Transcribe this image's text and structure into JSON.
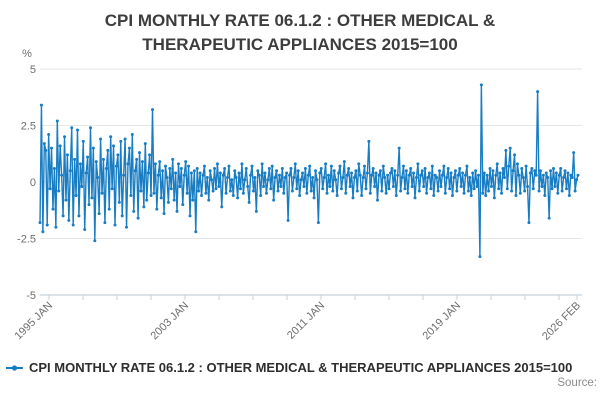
{
  "title": {
    "line1": "CPI MONTHLY RATE 06.1.2 : OTHER MEDICAL &",
    "line2": "THERAPEUTIC APPLIANCES 2015=100"
  },
  "y_axis": {
    "unit": "%",
    "tick_labels": [
      "5",
      "2.5",
      "0",
      "-2.5",
      "-5"
    ]
  },
  "x_axis": {
    "tick_labels": [
      "1995 JAN",
      "2003 JAN",
      "2011 JAN",
      "2019 JAN",
      "2026 FEB"
    ]
  },
  "legend": {
    "label": "CPI MONTHLY RATE 06.1.2 : OTHER MEDICAL & THERAPEUTIC APPLIANCES 2015=100"
  },
  "source": {
    "label": "Source:"
  },
  "colors": {
    "line": "#197dc3",
    "grid": "#e6e6e6",
    "axis": "#c8d2dc",
    "tick_text": "#6e6e6e",
    "title_text": "#3d3d3d",
    "source_text": "#8d8d8d"
  },
  "chart_data": {
    "type": "line",
    "title": "CPI MONTHLY RATE 06.1.2 : OTHER MEDICAL & THERAPEUTIC APPLIANCES 2015=100",
    "xlabel": "",
    "ylabel": "%",
    "ylim": [
      -5,
      5
    ],
    "y_ticks": [
      5,
      2.5,
      0,
      -2.5,
      -5
    ],
    "x_start": "1995 JAN",
    "x_end": "2026 FEB",
    "frequency": "monthly",
    "x_tick_labels": [
      "1995 JAN",
      "2003 JAN",
      "2011 JAN",
      "2019 JAN",
      "2026 FEB"
    ],
    "legend_position": "bottom-left",
    "grid": true,
    "series": [
      {
        "name": "CPI MONTHLY RATE 06.1.2 : OTHER MEDICAL & THERAPEUTIC APPLIANCES 2015=100",
        "values": [
          -1.8,
          3.4,
          -2.2,
          1.7,
          1.4,
          -1.9,
          2.1,
          -0.3,
          1.5,
          -1.2,
          0.6,
          -2.0,
          2.7,
          -0.4,
          1.6,
          0.3,
          -1.5,
          2.0,
          -0.8,
          1.2,
          -1.7,
          0.5,
          2.4,
          -1.9,
          1.0,
          -0.6,
          2.3,
          -1.5,
          0.8,
          -0.2,
          1.8,
          -2.1,
          0.4,
          1.1,
          -1.0,
          2.4,
          -0.7,
          1.5,
          -2.6,
          0.9,
          0.2,
          -1.4,
          1.9,
          -0.5,
          1.0,
          -1.8,
          0.6,
          1.4,
          -1.2,
          2.0,
          -0.3,
          1.6,
          -1.9,
          0.7,
          1.2,
          -0.9,
          1.8,
          -1.5,
          0.3,
          1.9,
          -2.0,
          0.8,
          1.5,
          -0.6,
          2.1,
          -1.3,
          0.5,
          1.0,
          -1.6,
          1.3,
          -0.4,
          0.9,
          -1.1,
          1.7,
          -0.8,
          0.4,
          1.2,
          -0.6,
          3.2,
          -0.5,
          0.8,
          -1.2,
          0.3,
          0.9,
          -0.7,
          0.5,
          -1.4,
          0.7,
          0.2,
          -0.9,
          0.6,
          -0.3,
          1.0,
          -0.8,
          0.4,
          -1.3,
          0.8,
          -0.2,
          0.6,
          -1.0,
          0.3,
          0.9,
          -0.5,
          0.7,
          -1.5,
          0.4,
          -0.8,
          0.5,
          -2.2,
          0.6,
          -0.4,
          0.4,
          -0.6,
          0.3,
          0.7,
          -0.5,
          0.2,
          -0.8,
          0.5,
          0.1,
          -0.4,
          0.6,
          -0.3,
          0.8,
          -0.2,
          0.4,
          -1.1,
          0.3,
          0.6,
          -0.5,
          0.2,
          0.7,
          -0.4,
          0.1,
          -0.6,
          0.5,
          0.2,
          -0.7,
          0.4,
          -0.3,
          0.8,
          -0.5,
          0.1,
          0.6,
          -0.2,
          -0.9,
          0.3,
          0.7,
          -0.4,
          0.2,
          -1.3,
          0.5,
          0.3,
          -0.6,
          0.8,
          -0.2,
          0.4,
          -0.5,
          0.1,
          0.6,
          -0.3,
          0.7,
          -0.8,
          0.2,
          0.5,
          -0.4,
          0.3,
          -0.2,
          0.6,
          -0.5,
          0.2,
          0.4,
          -1.7,
          0.3,
          0.6,
          -0.4,
          0.2,
          0.8,
          -0.3,
          0.5,
          -0.6,
          0.1,
          0.4,
          -0.2,
          0.6,
          -0.5,
          0.3,
          0.7,
          -0.4,
          0.2,
          -0.7,
          0.5,
          0.1,
          -1.8,
          0.4,
          0.6,
          -0.3,
          0.2,
          0.8,
          -0.5,
          0.3,
          -0.2,
          0.7,
          -0.4,
          0.5,
          0.1,
          -0.6,
          0.4,
          0.7,
          -0.3,
          0.2,
          0.9,
          -0.5,
          0.3,
          0.6,
          -0.2,
          0.4,
          -0.7,
          0.2,
          0.5,
          -0.4,
          0.8,
          0.3,
          -0.6,
          0.2,
          0.7,
          -0.3,
          0.4,
          1.8,
          -0.5,
          0.3,
          0.6,
          -0.2,
          0.4,
          -0.8,
          0.3,
          0.5,
          -0.4,
          0.7,
          0.2,
          -0.5,
          0.3,
          -0.3,
          0.4,
          0.6,
          -0.2,
          0.5,
          -0.6,
          0.3,
          1.5,
          -0.4,
          0.2,
          0.7,
          -0.3,
          0.5,
          -0.5,
          0.3,
          0.6,
          -0.2,
          0.4,
          -0.7,
          0.2,
          0.8,
          -0.4,
          0.3,
          0.5,
          -0.2,
          0.6,
          -0.5,
          0.2,
          0.4,
          -0.3,
          0.7,
          -0.6,
          0.3,
          0.2,
          -0.4,
          0.5,
          -0.2,
          0.3,
          0.7,
          -0.5,
          0.2,
          0.6,
          -0.3,
          0.4,
          -0.6,
          0.2,
          0.5,
          -0.4,
          0.3,
          0.6,
          -0.2,
          0.4,
          -0.5,
          0.3,
          0.7,
          -0.4,
          0.2,
          -0.6,
          0.4,
          -0.3,
          0.5,
          -0.2,
          0.3,
          -3.3,
          4.3,
          -0.5,
          0.4,
          -0.6,
          0.3,
          -0.4,
          0.6,
          -0.2,
          0.5,
          -0.7,
          0.3,
          0.8,
          -0.3,
          0.4,
          -0.5,
          0.6,
          0.2,
          1.4,
          -0.3,
          0.7,
          1.5,
          -0.4,
          0.5,
          1.2,
          -0.6,
          0.8,
          0.3,
          -0.5,
          0.6,
          0.2,
          -0.4,
          0.7,
          -0.2,
          -1.8,
          0.4,
          0.6,
          -0.3,
          0.5,
          0.3,
          4.0,
          -0.4,
          0.5,
          -0.2,
          0.3,
          -0.6,
          0.4,
          0.2,
          -1.6,
          0.5,
          -0.3,
          0.6,
          -0.2,
          0.4,
          -0.5,
          0.3,
          0.6,
          -0.4,
          0.2,
          0.5,
          -0.3,
          0.4,
          -0.6,
          0.3,
          0.2,
          1.3,
          -0.4,
          0.1,
          0.3
        ]
      }
    ]
  }
}
